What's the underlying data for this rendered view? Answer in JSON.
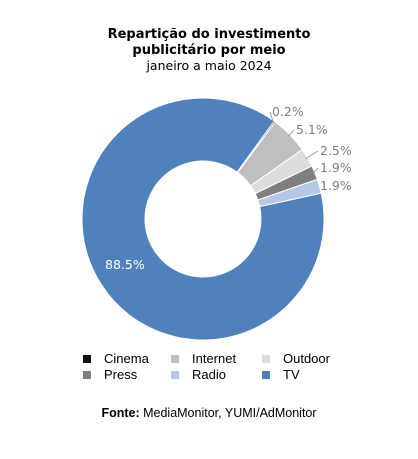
{
  "chart_data": {
    "type": "pie",
    "title_line1": "Repartição do investimento",
    "title_line2": "publicitário por meio",
    "subtitle": "janeiro a maio 2024",
    "categories": [
      "Cinema",
      "Internet",
      "Outdoor",
      "Press",
      "Radio",
      "TV"
    ],
    "values": [
      0.2,
      5.1,
      2.5,
      1.9,
      1.9,
      88.5
    ],
    "value_labels": [
      "0.2%",
      "5.1%",
      "2.5%",
      "1.9%",
      "1.9%",
      "88.5%"
    ],
    "colors": [
      "#111111",
      "#bfbfbf",
      "#dcdcdc",
      "#7f7f7f",
      "#b4c7e7",
      "#4f81bd"
    ],
    "donut": true,
    "legend_position": "bottom"
  },
  "source": {
    "label": "Fonte:",
    "text": " MediaMonitor, YUMI/AdMonitor"
  }
}
